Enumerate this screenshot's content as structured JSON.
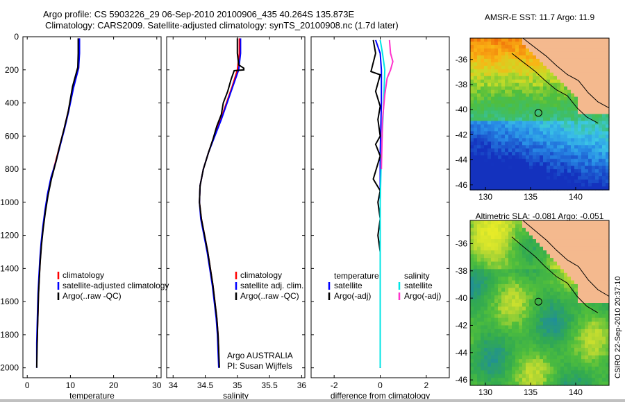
{
  "header": {
    "title1": "Argo profile: CS 5903226_29 06-Sep-2010 20100906_435 40.264S 135.873E",
    "title2": "Climatology: CARS2009. Satellite-adjusted climatology: synTS_20100908.nc (1.7d later)"
  },
  "footer": {
    "stamp": "CSIRO 22-Sep-2010 20:37:10"
  },
  "colors": {
    "red": "#ff0000",
    "blue": "#0000ff",
    "black": "#000000",
    "cyan": "#00e5e5",
    "magenta": "#ff33cc"
  },
  "chart_data": [
    {
      "type": "line",
      "xlabel": "temperature",
      "xlim": [
        -1,
        31
      ],
      "xticks": [
        0,
        10,
        20,
        30
      ],
      "ylim": [
        2060,
        0
      ],
      "yticks": [
        0,
        200,
        400,
        600,
        800,
        1000,
        1200,
        1400,
        1600,
        1800,
        2000
      ],
      "legend": {
        "position": "right",
        "entries": [
          "climatology",
          "satellite-adjusted climatology",
          "Argo(..raw -QC)"
        ]
      },
      "series": [
        {
          "name": "climatology",
          "color": "red",
          "points": [
            [
              12,
              10
            ],
            [
              12,
              100
            ],
            [
              11.9,
              190
            ],
            [
              10.6,
              310
            ],
            [
              9.5,
              450
            ],
            [
              8.6,
              550
            ],
            [
              7.6,
              650
            ],
            [
              6.6,
              750
            ],
            [
              5.6,
              850
            ],
            [
              4.8,
              950
            ],
            [
              4.2,
              1050
            ],
            [
              3.7,
              1150
            ],
            [
              3.3,
              1250
            ],
            [
              3.0,
              1350
            ],
            [
              2.8,
              1450
            ],
            [
              2.6,
              1550
            ],
            [
              2.5,
              1650
            ],
            [
              2.4,
              1750
            ],
            [
              2.3,
              1850
            ]
          ]
        },
        {
          "name": "satellite-adjusted climatology",
          "color": "blue",
          "points": [
            [
              12.1,
              10
            ],
            [
              12.1,
              100
            ],
            [
              11.9,
              190
            ],
            [
              10.7,
              310
            ],
            [
              9.6,
              450
            ],
            [
              8.7,
              550
            ],
            [
              7.7,
              650
            ],
            [
              6.7,
              750
            ],
            [
              5.5,
              850
            ],
            [
              4.7,
              950
            ],
            [
              4.1,
              1050
            ],
            [
              3.6,
              1150
            ],
            [
              3.2,
              1250
            ],
            [
              2.9,
              1350
            ],
            [
              2.7,
              1450
            ],
            [
              2.5,
              1550
            ],
            [
              2.4,
              1650
            ],
            [
              2.3,
              1750
            ],
            [
              2.2,
              1850
            ],
            [
              2.2,
              2000
            ]
          ]
        },
        {
          "name": "Argo(..raw -QC)",
          "color": "black",
          "points": [
            [
              11.8,
              10
            ],
            [
              11.8,
              100
            ],
            [
              11.7,
              185
            ],
            [
              10.5,
              300
            ],
            [
              9.5,
              450
            ],
            [
              8.5,
              560
            ],
            [
              7.5,
              660
            ],
            [
              6.6,
              760
            ],
            [
              5.6,
              860
            ],
            [
              4.8,
              960
            ],
            [
              4.2,
              1060
            ],
            [
              3.7,
              1160
            ],
            [
              3.3,
              1260
            ],
            [
              3.0,
              1360
            ],
            [
              2.8,
              1460
            ],
            [
              2.6,
              1560
            ],
            [
              2.5,
              1660
            ],
            [
              2.4,
              1760
            ],
            [
              2.3,
              1860
            ],
            [
              2.2,
              2000
            ]
          ]
        }
      ]
    },
    {
      "type": "line",
      "xlabel": "salinity",
      "xlim": [
        33.9,
        36.05
      ],
      "xticks": [
        34,
        34.5,
        35,
        35.5,
        36
      ],
      "ylim": [
        2060,
        0
      ],
      "legend": {
        "position": "right",
        "entries": [
          "climatology",
          "satellite adj. clim.",
          "Argo(..raw -QC)"
        ]
      },
      "annotation": [
        "Argo AUSTRALIA",
        "PI: Susan Wijffels"
      ],
      "series": [
        {
          "name": "climatology",
          "color": "red",
          "points": [
            [
              35.03,
              10
            ],
            [
              35.03,
              100
            ],
            [
              35.0,
              200
            ],
            [
              34.92,
              300
            ],
            [
              34.83,
              400
            ],
            [
              34.74,
              500
            ],
            [
              34.64,
              600
            ],
            [
              34.55,
              700
            ],
            [
              34.47,
              800
            ],
            [
              34.42,
              900
            ],
            [
              34.41,
              1000
            ],
            [
              34.44,
              1100
            ],
            [
              34.49,
              1200
            ],
            [
              34.54,
              1300
            ],
            [
              34.58,
              1400
            ],
            [
              34.62,
              1500
            ],
            [
              34.65,
              1600
            ],
            [
              34.68,
              1700
            ],
            [
              34.7,
              1800
            ],
            [
              34.71,
              1900
            ]
          ]
        },
        {
          "name": "satellite adj. clim.",
          "color": "blue",
          "points": [
            [
              35.05,
              10
            ],
            [
              35.05,
              100
            ],
            [
              35.02,
              200
            ],
            [
              34.93,
              300
            ],
            [
              34.84,
              400
            ],
            [
              34.75,
              500
            ],
            [
              34.65,
              600
            ],
            [
              34.55,
              700
            ],
            [
              34.47,
              800
            ],
            [
              34.42,
              900
            ],
            [
              34.41,
              1000
            ],
            [
              34.43,
              1100
            ],
            [
              34.48,
              1200
            ],
            [
              34.53,
              1300
            ],
            [
              34.57,
              1400
            ],
            [
              34.61,
              1500
            ],
            [
              34.64,
              1600
            ],
            [
              34.67,
              1700
            ],
            [
              34.69,
              1800
            ],
            [
              34.7,
              1900
            ],
            [
              34.71,
              2000
            ]
          ]
        },
        {
          "name": "Argo(..raw -QC)",
          "color": "black",
          "points": [
            [
              35.0,
              10
            ],
            [
              35.0,
              100
            ],
            [
              35.02,
              170
            ],
            [
              35.1,
              190
            ],
            [
              35.1,
              200
            ],
            [
              34.95,
              205
            ],
            [
              34.9,
              260
            ],
            [
              34.85,
              330
            ],
            [
              34.78,
              400
            ],
            [
              34.75,
              470
            ],
            [
              34.68,
              540
            ],
            [
              34.62,
              620
            ],
            [
              34.55,
              700
            ],
            [
              34.47,
              800
            ],
            [
              34.42,
              900
            ],
            [
              34.41,
              1000
            ],
            [
              34.44,
              1100
            ],
            [
              34.49,
              1200
            ],
            [
              34.54,
              1300
            ],
            [
              34.58,
              1400
            ],
            [
              34.62,
              1500
            ],
            [
              34.65,
              1600
            ],
            [
              34.68,
              1700
            ],
            [
              34.7,
              1800
            ],
            [
              34.71,
              1900
            ],
            [
              34.72,
              2000
            ]
          ]
        }
      ]
    },
    {
      "type": "line",
      "xlabel": "difference from climatology",
      "xlim": [
        -3,
        3
      ],
      "xticks": [
        -2,
        0,
        2
      ],
      "ylim": [
        2060,
        0
      ],
      "legend": {
        "position": "top",
        "groups": [
          {
            "title": "temperature",
            "entries": [
              "satellite",
              "Argo(-adj)"
            ]
          },
          {
            "title": "salinity",
            "entries": [
              "satellite",
              "Argo(-adj)"
            ]
          }
        ]
      },
      "series": [
        {
          "name": "satellite",
          "group": "temperature",
          "color": "blue",
          "points": [
            [
              -0.2,
              20
            ],
            [
              0.0,
              100
            ],
            [
              0.05,
              200
            ],
            [
              0.05,
              400
            ],
            [
              0.0,
              700
            ],
            [
              0.0,
              1000
            ],
            [
              0.0,
              1400
            ],
            [
              0.0,
              2000
            ]
          ]
        },
        {
          "name": "Argo(-adj)",
          "group": "temperature",
          "color": "black",
          "points": [
            [
              -0.3,
              20
            ],
            [
              -0.2,
              100
            ],
            [
              -0.4,
              210
            ],
            [
              0.0,
              230
            ],
            [
              -0.2,
              330
            ],
            [
              0.0,
              420
            ],
            [
              -0.1,
              500
            ],
            [
              0.0,
              600
            ],
            [
              -0.2,
              650
            ],
            [
              0.0,
              720
            ],
            [
              -0.3,
              860
            ],
            [
              0.0,
              930
            ],
            [
              -0.1,
              1000
            ],
            [
              0.0,
              1100
            ],
            [
              -0.1,
              1200
            ],
            [
              0.0,
              1300
            ],
            [
              0.0,
              1500
            ],
            [
              0.0,
              1700
            ],
            [
              0.0,
              2000
            ]
          ]
        },
        {
          "name": "satellite",
          "group": "salinity",
          "color": "cyan",
          "points": [
            [
              0.0,
              20
            ],
            [
              0.1,
              100
            ],
            [
              0.2,
              200
            ],
            [
              0.15,
              400
            ],
            [
              0.05,
              700
            ],
            [
              0.0,
              1000
            ],
            [
              0.0,
              1400
            ],
            [
              0.0,
              2000
            ]
          ]
        },
        {
          "name": "Argo(-adj)",
          "group": "salinity",
          "color": "magenta",
          "points": [
            [
              0.4,
              20
            ],
            [
              0.45,
              100
            ],
            [
              0.55,
              150
            ],
            [
              0.45,
              200
            ],
            [
              0.3,
              250
            ],
            [
              0.2,
              350
            ],
            [
              0.1,
              500
            ],
            [
              0.05,
              800
            ]
          ]
        }
      ]
    },
    {
      "type": "heatmap",
      "title": "AMSR-E SST: 11.7  Argo: 11.9",
      "xlim": [
        128.3,
        143.7
      ],
      "ylim": [
        -46.4,
        -34.3
      ],
      "xticks": [
        130,
        135,
        140
      ],
      "yticks": [
        -36,
        -38,
        -40,
        -42,
        -44,
        -46
      ],
      "marker": {
        "x": 135.87,
        "y": -40.26
      }
    },
    {
      "type": "heatmap",
      "title": "Altimetric SLA: -0.081  Argo: -0.051",
      "xlim": [
        128.3,
        143.7
      ],
      "ylim": [
        -46.4,
        -34.3
      ],
      "xticks": [
        130,
        135,
        140
      ],
      "yticks": [
        -36,
        -38,
        -40,
        -42,
        -44,
        -46
      ],
      "marker": {
        "x": 135.87,
        "y": -40.26
      }
    }
  ]
}
